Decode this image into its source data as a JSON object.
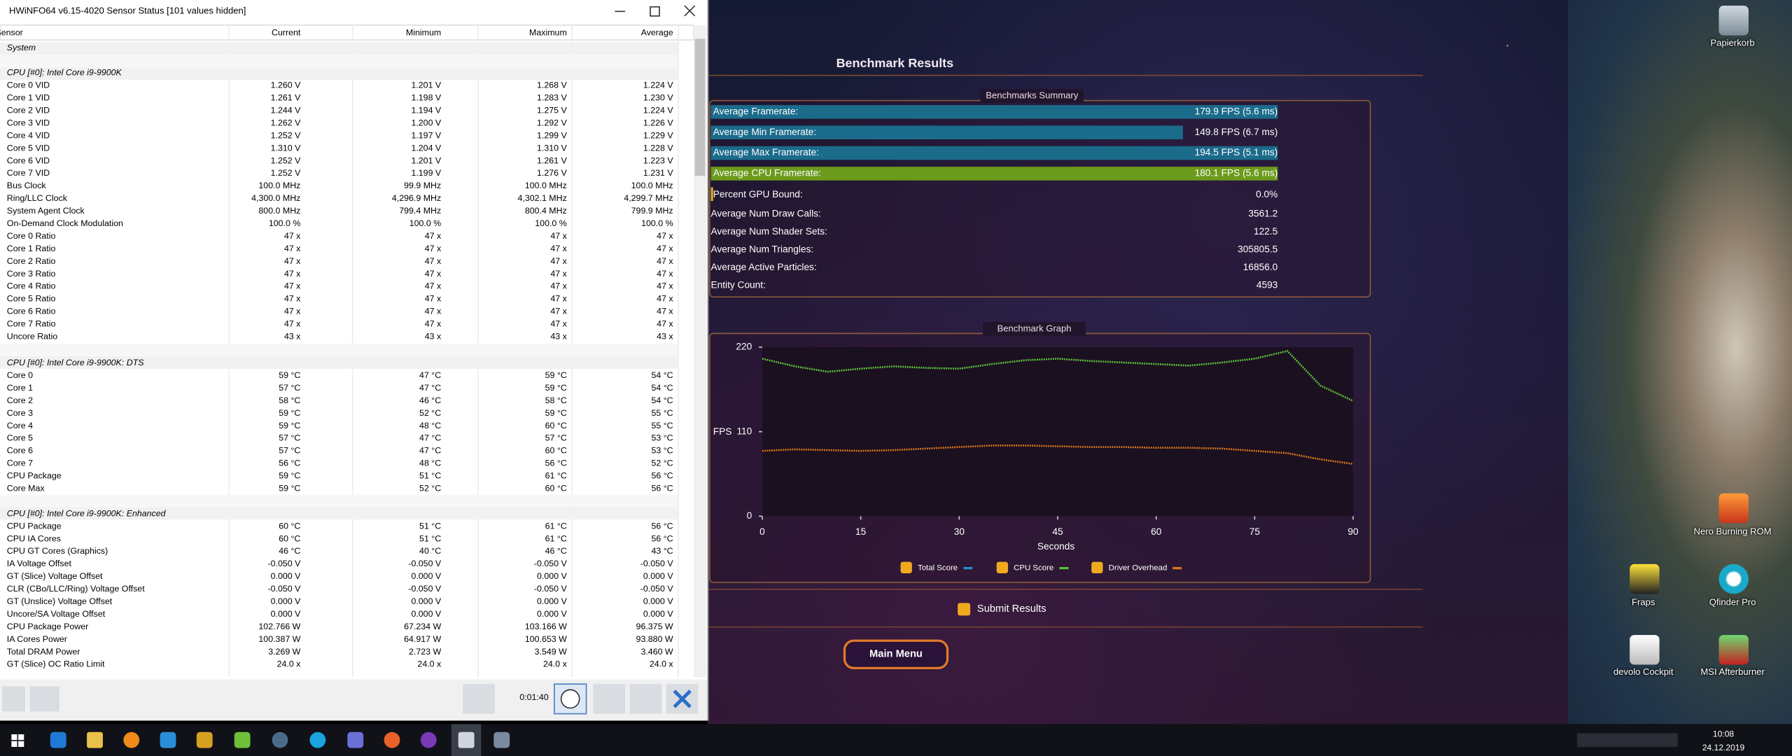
{
  "hwinfo": {
    "window_title": "HWiNFO64 v6.15-4020 Sensor Status [101 values hidden]",
    "columns": [
      "Sensor",
      "Current",
      "Minimum",
      "Maximum",
      "Average"
    ],
    "sections": [
      {
        "title": "System",
        "rows": []
      },
      {
        "title": "CPU [#0]: Intel Core i9-9900K",
        "rows": [
          [
            "Core 0 VID",
            "1.260 V",
            "1.201 V",
            "1.268 V",
            "1.224 V"
          ],
          [
            "Core 1 VID",
            "1.261 V",
            "1.198 V",
            "1.283 V",
            "1.230 V"
          ],
          [
            "Core 2 VID",
            "1.244 V",
            "1.194 V",
            "1.275 V",
            "1.224 V"
          ],
          [
            "Core 3 VID",
            "1.262 V",
            "1.200 V",
            "1.292 V",
            "1.226 V"
          ],
          [
            "Core 4 VID",
            "1.252 V",
            "1.197 V",
            "1.299 V",
            "1.229 V"
          ],
          [
            "Core 5 VID",
            "1.310 V",
            "1.204 V",
            "1.310 V",
            "1.228 V"
          ],
          [
            "Core 6 VID",
            "1.252 V",
            "1.201 V",
            "1.261 V",
            "1.223 V"
          ],
          [
            "Core 7 VID",
            "1.252 V",
            "1.199 V",
            "1.276 V",
            "1.231 V"
          ],
          [
            "Bus Clock",
            "100.0 MHz",
            "99.9 MHz",
            "100.0 MHz",
            "100.0 MHz"
          ],
          [
            "Ring/LLC Clock",
            "4,300.0 MHz",
            "4,296.9 MHz",
            "4,302.1 MHz",
            "4,299.7 MHz"
          ],
          [
            "System Agent Clock",
            "800.0 MHz",
            "799.4 MHz",
            "800.4 MHz",
            "799.9 MHz"
          ],
          [
            "On-Demand Clock Modulation",
            "100.0 %",
            "100.0 %",
            "100.0 %",
            "100.0 %"
          ],
          [
            "Core 0 Ratio",
            "47 x",
            "47 x",
            "47 x",
            "47 x"
          ],
          [
            "Core 1 Ratio",
            "47 x",
            "47 x",
            "47 x",
            "47 x"
          ],
          [
            "Core 2 Ratio",
            "47 x",
            "47 x",
            "47 x",
            "47 x"
          ],
          [
            "Core 3 Ratio",
            "47 x",
            "47 x",
            "47 x",
            "47 x"
          ],
          [
            "Core 4 Ratio",
            "47 x",
            "47 x",
            "47 x",
            "47 x"
          ],
          [
            "Core 5 Ratio",
            "47 x",
            "47 x",
            "47 x",
            "47 x"
          ],
          [
            "Core 6 Ratio",
            "47 x",
            "47 x",
            "47 x",
            "47 x"
          ],
          [
            "Core 7 Ratio",
            "47 x",
            "47 x",
            "47 x",
            "47 x"
          ],
          [
            "Uncore Ratio",
            "43 x",
            "43 x",
            "43 x",
            "43 x"
          ]
        ]
      },
      {
        "title": "CPU [#0]: Intel Core i9-9900K: DTS",
        "rows": [
          [
            "Core 0",
            "59 °C",
            "47 °C",
            "59 °C",
            "54 °C"
          ],
          [
            "Core 1",
            "57 °C",
            "47 °C",
            "59 °C",
            "54 °C"
          ],
          [
            "Core 2",
            "58 °C",
            "46 °C",
            "58 °C",
            "54 °C"
          ],
          [
            "Core 3",
            "59 °C",
            "52 °C",
            "59 °C",
            "55 °C"
          ],
          [
            "Core 4",
            "59 °C",
            "48 °C",
            "60 °C",
            "55 °C"
          ],
          [
            "Core 5",
            "57 °C",
            "47 °C",
            "57 °C",
            "53 °C"
          ],
          [
            "Core 6",
            "57 °C",
            "47 °C",
            "60 °C",
            "53 °C"
          ],
          [
            "Core 7",
            "56 °C",
            "48 °C",
            "56 °C",
            "52 °C"
          ],
          [
            "CPU Package",
            "59 °C",
            "51 °C",
            "61 °C",
            "56 °C"
          ],
          [
            "Core Max",
            "59 °C",
            "52 °C",
            "60 °C",
            "56 °C"
          ]
        ]
      },
      {
        "title": "CPU [#0]: Intel Core i9-9900K: Enhanced",
        "rows": [
          [
            "CPU Package",
            "60 °C",
            "51 °C",
            "61 °C",
            "56 °C"
          ],
          [
            "CPU IA Cores",
            "60 °C",
            "51 °C",
            "61 °C",
            "56 °C"
          ],
          [
            "CPU GT Cores (Graphics)",
            "46 °C",
            "40 °C",
            "46 °C",
            "43 °C"
          ],
          [
            "IA Voltage Offset",
            "-0.050 V",
            "-0.050 V",
            "-0.050 V",
            "-0.050 V"
          ],
          [
            "GT (Slice) Voltage Offset",
            "0.000 V",
            "0.000 V",
            "0.000 V",
            "0.000 V"
          ],
          [
            "CLR (CBo/LLC/Ring) Voltage Offset",
            "-0.050 V",
            "-0.050 V",
            "-0.050 V",
            "-0.050 V"
          ],
          [
            "GT (Unslice) Voltage Offset",
            "0.000 V",
            "0.000 V",
            "0.000 V",
            "0.000 V"
          ],
          [
            "Uncore/SA Voltage Offset",
            "0.000 V",
            "0.000 V",
            "0.000 V",
            "0.000 V"
          ],
          [
            "CPU Package Power",
            "102.766 W",
            "67.234 W",
            "103.166 W",
            "96.375 W"
          ],
          [
            "IA Cores Power",
            "100.387 W",
            "64.917 W",
            "100.653 W",
            "93.880 W"
          ],
          [
            "Total DRAM Power",
            "3.269 W",
            "2.723 W",
            "3.549 W",
            "3.460 W"
          ],
          [
            "GT (Slice) OC Ratio Limit",
            "24.0 x",
            "24.0 x",
            "24.0 x",
            "24.0 x"
          ]
        ]
      }
    ],
    "timer": "0:01:40"
  },
  "benchmark": {
    "title": "Benchmark Results",
    "summary": {
      "title": "Benchmarks Summary",
      "bars": [
        {
          "label": "Average Framerate:",
          "value": 179.9,
          "value_label": "179.9 FPS (5.6 ms)",
          "color": "#1b6b8b"
        },
        {
          "label": "Average Min Framerate:",
          "value": 149.8,
          "value_label": "149.8 FPS (6.7 ms)",
          "color": "#1b6b8b"
        },
        {
          "label": "Average Max Framerate:",
          "value": 194.5,
          "value_label": "194.5 FPS (5.1 ms)",
          "color": "#1b6b8b"
        },
        {
          "label": "Average CPU Framerate:",
          "value": 180.1,
          "value_label": "180.1 FPS (5.6 ms)",
          "color": "#6c9a1c"
        }
      ],
      "gpu_bound": {
        "label": "Percent GPU Bound:",
        "value": 0.0,
        "value_label": "0.0%",
        "color": "#e3a92a"
      },
      "stats": [
        [
          "Average Num Draw Calls:",
          "3561.2"
        ],
        [
          "Average Num Shader Sets:",
          "122.5"
        ],
        [
          "Average Num Triangles:",
          "305805.5"
        ],
        [
          "Average Active Particles:",
          "16856.0"
        ],
        [
          "Entity Count:",
          "4593"
        ]
      ]
    },
    "graph": {
      "type": "line",
      "title": "Benchmark Graph",
      "y_label": "FPS",
      "x_label": "Seconds",
      "x": [
        0,
        5,
        10,
        15,
        20,
        25,
        30,
        35,
        40,
        45,
        50,
        55,
        60,
        65,
        70,
        75,
        80,
        85,
        90
      ],
      "series": [
        {
          "name": "Total Score",
          "color": "#1e8fd0"
        },
        {
          "name": "CPU Score",
          "color": "#5cc23a",
          "values": [
            205,
            195,
            188,
            192,
            195,
            193,
            192,
            198,
            203,
            205,
            202,
            200,
            198,
            196,
            200,
            205,
            215,
            170,
            150
          ]
        },
        {
          "name": "Driver Overhead",
          "color": "#d8761c",
          "values": [
            85,
            87,
            86,
            85,
            86,
            88,
            90,
            92,
            92,
            91,
            90,
            90,
            89,
            89,
            88,
            85,
            82,
            74,
            68
          ]
        }
      ],
      "xlim": [
        0,
        90
      ],
      "ylim": [
        0,
        220
      ],
      "xticks": [
        0,
        15,
        30,
        45,
        60,
        75,
        90
      ],
      "yticks": [
        0,
        110,
        220
      ]
    },
    "submit": "Submit Results",
    "main_menu": "Main Menu"
  },
  "desktop": {
    "icons": [
      "Papierkorb",
      "Nero Burning ROM",
      "Fraps",
      "Qfinder Pro",
      "devolo Cockpit",
      "MSI Afterburner"
    ],
    "clock": {
      "time": "10:08",
      "date": "24.12.2019"
    }
  }
}
